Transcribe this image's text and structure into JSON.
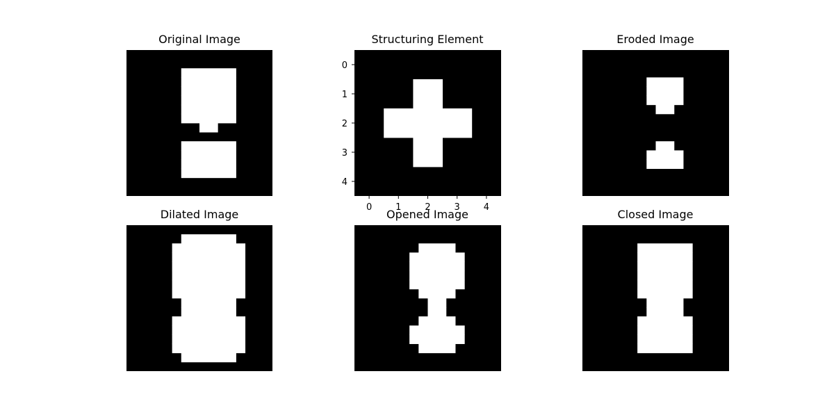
{
  "figure": {
    "background": "#ffffff",
    "foreground": "#ffffff",
    "mask_color": "#000000"
  },
  "chart_data": [
    {
      "type": "heatmap",
      "title": "Original Image",
      "cmap": "gray",
      "rows": 16,
      "cols": 16,
      "white_runs": [
        [
          2,
          6,
          11
        ],
        [
          3,
          6,
          11
        ],
        [
          4,
          6,
          11
        ],
        [
          5,
          6,
          11
        ],
        [
          6,
          6,
          11
        ],
        [
          7,
          6,
          11
        ],
        [
          8,
          8,
          9
        ],
        [
          10,
          6,
          11
        ],
        [
          11,
          6,
          11
        ],
        [
          12,
          6,
          11
        ],
        [
          13,
          6,
          11
        ]
      ]
    },
    {
      "type": "heatmap",
      "title": "Structuring Element",
      "cmap": "gray",
      "rows": 5,
      "cols": 5,
      "xticks": [
        0,
        1,
        2,
        3,
        4
      ],
      "yticks": [
        0,
        1,
        2,
        3,
        4
      ],
      "white_runs": [
        [
          1,
          2,
          2
        ],
        [
          2,
          1,
          3
        ],
        [
          3,
          2,
          2
        ]
      ]
    },
    {
      "type": "heatmap",
      "title": "Eroded Image",
      "cmap": "gray",
      "rows": 16,
      "cols": 16,
      "white_runs": [
        [
          3,
          7,
          10
        ],
        [
          4,
          7,
          10
        ],
        [
          5,
          7,
          10
        ],
        [
          6,
          8,
          9
        ],
        [
          10,
          8,
          9
        ],
        [
          11,
          7,
          10
        ],
        [
          12,
          7,
          10
        ]
      ]
    },
    {
      "type": "heatmap",
      "title": "Dilated Image",
      "cmap": "gray",
      "rows": 16,
      "cols": 16,
      "white_runs": [
        [
          1,
          6,
          11
        ],
        [
          2,
          5,
          12
        ],
        [
          3,
          5,
          12
        ],
        [
          4,
          5,
          12
        ],
        [
          5,
          5,
          12
        ],
        [
          6,
          5,
          12
        ],
        [
          7,
          5,
          12
        ],
        [
          8,
          6,
          11
        ],
        [
          9,
          6,
          11
        ],
        [
          10,
          5,
          12
        ],
        [
          11,
          5,
          12
        ],
        [
          12,
          5,
          12
        ],
        [
          13,
          5,
          12
        ],
        [
          14,
          6,
          11
        ]
      ]
    },
    {
      "type": "heatmap",
      "title": "Opened Image",
      "cmap": "gray",
      "rows": 16,
      "cols": 16,
      "white_runs": [
        [
          2,
          7,
          10
        ],
        [
          3,
          6,
          11
        ],
        [
          4,
          6,
          11
        ],
        [
          5,
          6,
          11
        ],
        [
          6,
          6,
          11
        ],
        [
          7,
          7,
          10
        ],
        [
          8,
          8,
          9
        ],
        [
          9,
          8,
          9
        ],
        [
          10,
          7,
          10
        ],
        [
          11,
          6,
          11
        ],
        [
          12,
          6,
          11
        ],
        [
          13,
          7,
          10
        ]
      ]
    },
    {
      "type": "heatmap",
      "title": "Closed Image",
      "cmap": "gray",
      "rows": 16,
      "cols": 16,
      "white_runs": [
        [
          2,
          6,
          11
        ],
        [
          3,
          6,
          11
        ],
        [
          4,
          6,
          11
        ],
        [
          5,
          6,
          11
        ],
        [
          6,
          6,
          11
        ],
        [
          7,
          6,
          11
        ],
        [
          8,
          7,
          10
        ],
        [
          9,
          7,
          10
        ],
        [
          10,
          6,
          11
        ],
        [
          11,
          6,
          11
        ],
        [
          12,
          6,
          11
        ],
        [
          13,
          6,
          11
        ]
      ]
    }
  ]
}
